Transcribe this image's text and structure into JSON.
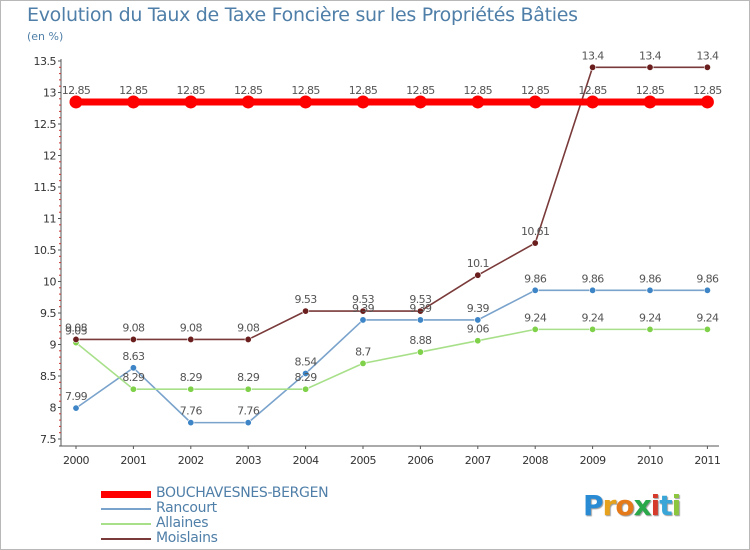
{
  "header": {
    "title": "Evolution du Taux de Taxe Foncière sur les Propriétés Bâties",
    "unit": "(en %)"
  },
  "logo": {
    "letters": [
      "P",
      "r",
      "o",
      "x",
      "i",
      "t",
      "i"
    ],
    "colors": [
      "#2a8bd5",
      "#e6a21c",
      "#e57a1a",
      "#2aa84a",
      "#d53a2a",
      "#3aa6d8",
      "#8cc63f"
    ]
  },
  "chart_data": {
    "type": "line",
    "title": "Evolution du Taux de Taxe Foncière sur les Propriétés Bâties",
    "ylabel": "(en %)",
    "xlabel": "",
    "x": [
      "2000",
      "2001",
      "2002",
      "2003",
      "2004",
      "2005",
      "2006",
      "2007",
      "2008",
      "2009",
      "2010",
      "2011"
    ],
    "ylim": [
      7.5,
      13.5
    ],
    "yticks": [
      "7.5",
      "8",
      "8.5",
      "9",
      "9.5",
      "10",
      "10.5",
      "11",
      "11.5",
      "12",
      "12.5",
      "13",
      "13.5"
    ],
    "grid": false,
    "legend_position": "bottom-left",
    "series": [
      {
        "name": "BOUCHAVESNES-BERGEN",
        "color": "#ff0000",
        "values": [
          12.85,
          12.85,
          12.85,
          12.85,
          12.85,
          12.85,
          12.85,
          12.85,
          12.85,
          12.85,
          12.85,
          12.85
        ],
        "labels": [
          "12.85",
          "12.85",
          "12.85",
          "12.85",
          "12.85",
          "12.85",
          "12.85",
          "12.85",
          "12.85",
          "12.85",
          "12.85",
          "12.85"
        ]
      },
      {
        "name": "Rancourt",
        "color": "#7aa3cc",
        "marker": "#3d85c6",
        "values": [
          7.99,
          8.63,
          7.76,
          7.76,
          8.54,
          9.39,
          9.39,
          9.39,
          9.86,
          9.86,
          9.86,
          9.86
        ],
        "labels": [
          "7.99",
          "8.63",
          "7.76",
          "7.76",
          "8.54",
          "9.39",
          "9.39",
          "9.39",
          "9.86",
          "9.86",
          "9.86",
          "9.86"
        ]
      },
      {
        "name": "Allaines",
        "color": "#a8e08a",
        "marker": "#7ed148",
        "values": [
          9.03,
          8.29,
          8.29,
          8.29,
          8.29,
          8.7,
          8.88,
          9.06,
          9.24,
          9.24,
          9.24,
          9.24
        ],
        "labels": [
          "9.03",
          "8.29",
          "8.29",
          "8.29",
          "8.29",
          "8.7",
          "8.88",
          "9.06",
          "9.24",
          "9.24",
          "9.24",
          "9.24"
        ]
      },
      {
        "name": "Moislains",
        "color": "#7a3a3a",
        "marker": "#6b1e1e",
        "values": [
          9.08,
          9.08,
          9.08,
          9.08,
          9.53,
          9.53,
          9.53,
          10.1,
          10.61,
          13.4,
          13.4,
          13.4
        ],
        "labels": [
          "9.08",
          "9.08",
          "9.08",
          "9.08",
          "9.53",
          "9.53",
          "9.53",
          "10.1",
          "10.61",
          "13.4",
          "13.4",
          "13.4"
        ]
      }
    ]
  }
}
